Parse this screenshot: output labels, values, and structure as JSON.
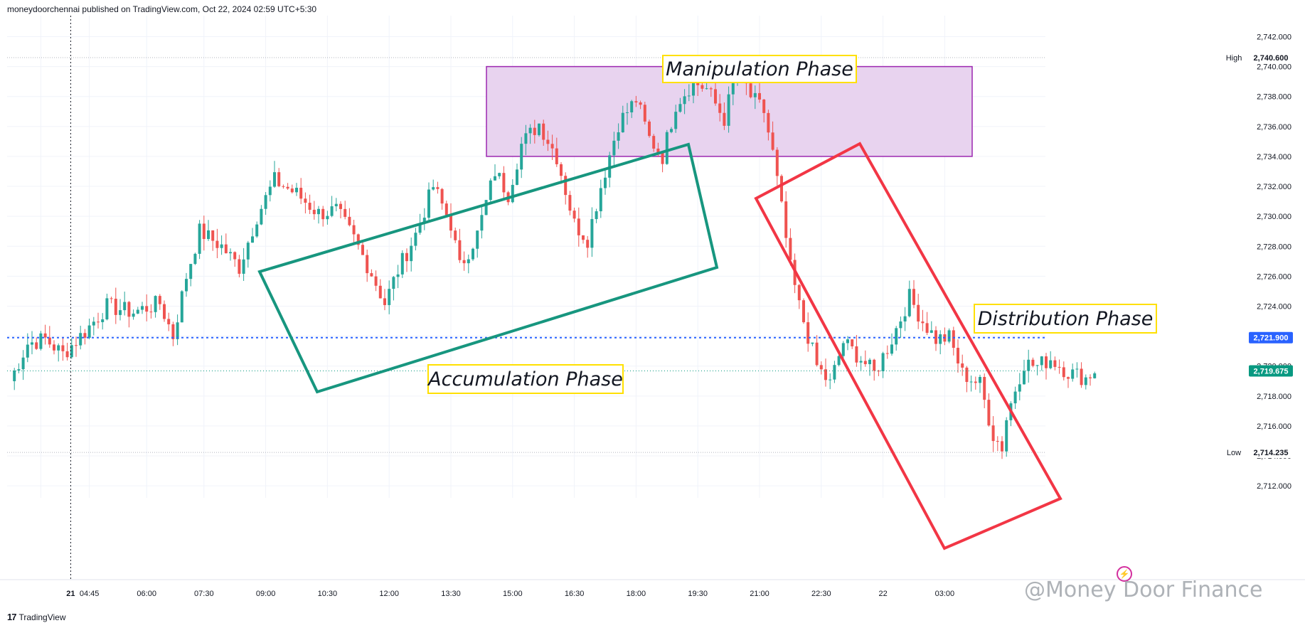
{
  "header": {
    "publisher": "moneydoorchennai published on TradingView.com, Oct 22, 2024 02:59 UTC+5:30"
  },
  "footer": {
    "logo_text": "TradingView",
    "logo_icon": "tradingview-logo-icon"
  },
  "watermark": {
    "text": "@Money Door Finance"
  },
  "colors": {
    "up": "#26a69a",
    "down": "#ef5350",
    "accumulation": "#17967f",
    "distribution": "#f23645",
    "manipulation_fill": "#e8d3ef",
    "manipulation_border": "#9c27b0",
    "label_border": "#ffe000",
    "hline": "#2962ff",
    "last_price": "#089981",
    "grid": "#f0f3fa"
  },
  "chart_data": {
    "type": "candlestick",
    "title": "",
    "ylim": [
      2711.2,
      2743.4
    ],
    "y_ticks": [
      "2,712.000",
      "2,714.000",
      "2,716.000",
      "2,718.000",
      "2,720.000",
      "2,722.000",
      "2,724.000",
      "2,726.000",
      "2,728.000",
      "2,730.000",
      "2,732.000",
      "2,734.000",
      "2,736.000",
      "2,738.000",
      "2,740.000",
      "2,742.000"
    ],
    "y_tick_values": [
      2712,
      2714,
      2716,
      2718,
      2720,
      2722,
      2724,
      2726,
      2728,
      2730,
      2732,
      2734,
      2736,
      2738,
      2740,
      2742
    ],
    "x_ticks": [
      "21",
      "04:45",
      "06:00",
      "07:30",
      "09:00",
      "10:30",
      "12:00",
      "13:30",
      "15:00",
      "16:30",
      "18:00",
      "19:30",
      "21:00",
      "22:30",
      "22",
      "03:00"
    ],
    "x_tick_bars": [
      7,
      18,
      31,
      44,
      58,
      72,
      86,
      100,
      114,
      128,
      142,
      156,
      170,
      184,
      198,
      212
    ],
    "bar_count": 225,
    "high": {
      "label": "High",
      "value": "2,740.600",
      "price": 2740.6
    },
    "low": {
      "label": "Low",
      "value": "2,714.235",
      "price": 2714.235
    },
    "horizontal_line": {
      "value": "2,721.900",
      "price": 2721.9
    },
    "last_price": {
      "value": "2,719.675",
      "price": 2719.675
    },
    "path": [
      [
        0,
        2719.0
      ],
      [
        4,
        2721.5
      ],
      [
        8,
        2721.8
      ],
      [
        12,
        2720.8
      ],
      [
        17,
        2722.3
      ],
      [
        22,
        2724.0
      ],
      [
        28,
        2723.6
      ],
      [
        34,
        2724.2
      ],
      [
        37,
        2722.0
      ],
      [
        40,
        2726.0
      ],
      [
        43,
        2729.0
      ],
      [
        48,
        2728.0
      ],
      [
        52,
        2726.6
      ],
      [
        56,
        2730.0
      ],
      [
        60,
        2732.4
      ],
      [
        65,
        2731.5
      ],
      [
        70,
        2730.2
      ],
      [
        74,
        2730.4
      ],
      [
        78,
        2728.5
      ],
      [
        82,
        2726.2
      ],
      [
        85,
        2724.2
      ],
      [
        88,
        2726.4
      ],
      [
        92,
        2728.8
      ],
      [
        96,
        2732.0
      ],
      [
        100,
        2729.5
      ],
      [
        102,
        2726.6
      ],
      [
        106,
        2728.8
      ],
      [
        110,
        2733.0
      ],
      [
        113,
        2731.5
      ],
      [
        116,
        2734.8
      ],
      [
        120,
        2736.2
      ],
      [
        124,
        2734.0
      ],
      [
        128,
        2729.5
      ],
      [
        131,
        2728.5
      ],
      [
        134,
        2732.0
      ],
      [
        138,
        2736.2
      ],
      [
        142,
        2737.8
      ],
      [
        145,
        2735.2
      ],
      [
        148,
        2734.0
      ],
      [
        151,
        2737.5
      ],
      [
        155,
        2739.0
      ],
      [
        158,
        2738.5
      ],
      [
        162,
        2736.5
      ],
      [
        165,
        2740.0
      ],
      [
        168,
        2738.0
      ],
      [
        171,
        2737.0
      ],
      [
        173,
        2734.2
      ],
      [
        175,
        2730.5
      ],
      [
        177,
        2726.5
      ],
      [
        179,
        2724.0
      ],
      [
        183,
        2720.0
      ],
      [
        186,
        2718.8
      ],
      [
        189,
        2721.6
      ],
      [
        193,
        2720.5
      ],
      [
        196,
        2719.5
      ],
      [
        200,
        2721.8
      ],
      [
        204,
        2724.6
      ],
      [
        207,
        2723.0
      ],
      [
        210,
        2721.8
      ],
      [
        213,
        2721.9
      ],
      [
        216,
        2719.5
      ],
      [
        220,
        2718.8
      ],
      [
        223,
        2715.4
      ],
      [
        225,
        2714.6
      ],
      [
        226,
        2716.5
      ],
      [
        228,
        2718.5
      ],
      [
        230,
        2720.2
      ],
      [
        233,
        2720.0
      ],
      [
        236,
        2720.5
      ],
      [
        240,
        2719.6
      ],
      [
        244,
        2719.2
      ],
      [
        246,
        2719.7
      ]
    ],
    "annotations": [
      {
        "name": "accumulation",
        "label": "Accumulation Phase"
      },
      {
        "name": "manipulation",
        "label": "Manipulation Phase"
      },
      {
        "name": "distribution",
        "label": "Distribution Phase"
      }
    ]
  }
}
